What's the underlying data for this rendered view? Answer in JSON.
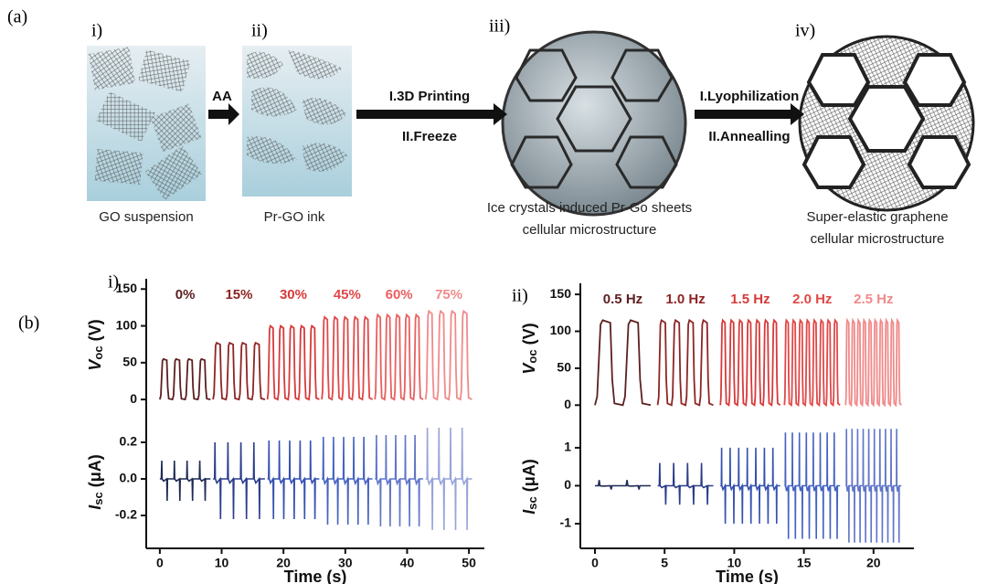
{
  "schematic": {
    "panel_label": "(a)",
    "steps": [
      {
        "label": "i)",
        "caption": [
          "GO suspension"
        ]
      },
      {
        "label": "ii)",
        "caption": [
          "Pr-GO ink"
        ]
      },
      {
        "label": "iii)",
        "caption": [
          "Ice crystals induced Pr-Go sheets",
          "cellular microstructure"
        ]
      },
      {
        "label": "iv)",
        "caption": [
          "Super-elastic graphene",
          "cellular microstructure"
        ]
      }
    ],
    "arrows": [
      {
        "lines": [
          "AA"
        ]
      },
      {
        "lines": [
          "I.3D Printing",
          "II.Freeze"
        ]
      },
      {
        "lines": [
          "I.Lyophilization",
          "II.Annealling"
        ]
      }
    ]
  },
  "figure_b_label": "(b)",
  "chart_data": [
    {
      "type": "line",
      "panel_label": "i)",
      "xlabel": "Time (s)",
      "xlim": [
        -2.2,
        52.5
      ],
      "xticks": [
        0,
        10,
        20,
        30,
        40,
        50
      ],
      "top": {
        "ylabel": {
          "symbol": "V",
          "sub": "oc",
          "unit": " (V)"
        },
        "ylim": [
          -16,
          164
        ],
        "yticks": [
          0,
          50,
          100,
          150
        ]
      },
      "bottom": {
        "ylabel": {
          "symbol": "I",
          "sub": "sc",
          "unit": " (μA)"
        },
        "ylim": [
          -0.38,
          0.345
        ],
        "yticks": [
          -0.2,
          {
            "value": 0,
            "label": "0.0"
          },
          0.2
        ]
      },
      "segments": [
        {
          "label": "0%",
          "t_start": 0,
          "t_end": 8.2,
          "cycles": 4,
          "voc_peak": 55,
          "isc_max": 0.1,
          "isc_min": -0.12,
          "color": "#5c1f1f",
          "isc_color": "#1f2a55"
        },
        {
          "label": "15%",
          "t_start": 8.6,
          "t_end": 17,
          "cycles": 4,
          "voc_peak": 77,
          "isc_max": 0.2,
          "isc_min": -0.22,
          "color": "#8e2424",
          "isc_color": "#2a3d8a"
        },
        {
          "label": "30%",
          "t_start": 17.4,
          "t_end": 25.8,
          "cycles": 5,
          "voc_peak": 100,
          "isc_max": 0.21,
          "isc_min": -0.22,
          "color": "#d63a3a",
          "isc_color": "#3450b0"
        },
        {
          "label": "45%",
          "t_start": 26.2,
          "t_end": 34.4,
          "cycles": 5,
          "voc_peak": 112,
          "isc_max": 0.23,
          "isc_min": -0.25,
          "color": "#e04848",
          "isc_color": "#4563c0"
        },
        {
          "label": "60%",
          "t_start": 34.8,
          "t_end": 42.6,
          "cycles": 5,
          "voc_peak": 115,
          "isc_max": 0.24,
          "isc_min": -0.26,
          "color": "#e86060",
          "isc_color": "#6075c8"
        },
        {
          "label": "75%",
          "t_start": 43,
          "t_end": 50.5,
          "cycles": 4,
          "voc_peak": 120,
          "isc_max": 0.28,
          "isc_min": -0.28,
          "color": "#f08a8a",
          "isc_color": "#98a4d8"
        }
      ]
    },
    {
      "type": "line",
      "panel_label": "ii)",
      "xlabel": "Time (s)",
      "xlim": [
        -1.05,
        22.9
      ],
      "xticks": [
        0,
        5,
        10,
        15,
        20
      ],
      "top": {
        "ylabel": {
          "symbol": "V",
          "sub": "oc",
          "unit": " (V)"
        },
        "ylim": [
          -12,
          165
        ],
        "yticks": [
          0,
          50,
          100,
          150
        ]
      },
      "bottom": {
        "ylabel": {
          "symbol": "I",
          "sub": "sc",
          "unit": " (μA)"
        },
        "ylim": [
          -1.65,
          1.6
        ],
        "yticks": [
          -1,
          0,
          1
        ]
      },
      "segments": [
        {
          "label": "0.5 Hz",
          "t_start": 0,
          "t_end": 4,
          "cycles": 2,
          "voc_peak": 115,
          "isc_max": 0.15,
          "isc_min": -0.1,
          "color": "#5c1f1f",
          "isc_color": "#1f2a55"
        },
        {
          "label": "1.0 Hz",
          "t_start": 4.5,
          "t_end": 8.5,
          "cycles": 4,
          "voc_peak": 115,
          "isc_max": 0.6,
          "isc_min": -0.5,
          "color": "#8e2424",
          "isc_color": "#2a3d8a"
        },
        {
          "label": "1.5 Hz",
          "t_start": 9,
          "t_end": 13.3,
          "cycles": 7,
          "voc_peak": 115,
          "isc_max": 1.0,
          "isc_min": -1.0,
          "color": "#d63a3a",
          "isc_color": "#3450b0"
        },
        {
          "label": "2.0 Hz",
          "t_start": 13.6,
          "t_end": 17.6,
          "cycles": 8,
          "voc_peak": 115,
          "isc_max": 1.4,
          "isc_min": -1.4,
          "color": "#e04848",
          "isc_color": "#4563c0"
        },
        {
          "label": "2.5 Hz",
          "t_start": 18,
          "t_end": 22,
          "cycles": 10,
          "voc_peak": 115,
          "isc_max": 1.5,
          "isc_min": -1.5,
          "color": "#f08a8a",
          "isc_color": "#6075c8"
        }
      ]
    }
  ]
}
